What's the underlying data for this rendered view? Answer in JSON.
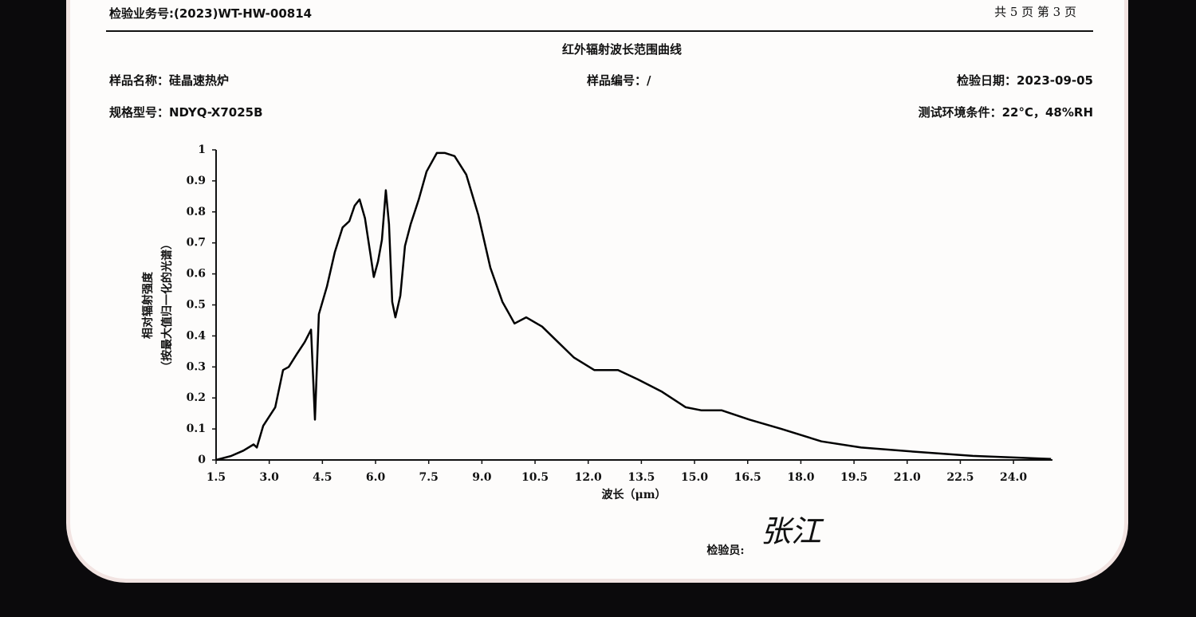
{
  "header": {
    "report_no": "检验业务号:(2023)WT-HW-00814",
    "page": "共 5 页 第 3 页"
  },
  "info": {
    "sample_name": "样品名称：硅晶速热炉",
    "sample_no": "样品编号：/",
    "test_date": "检验日期：2023-09-05",
    "model": "规格型号：NDYQ-X7025B",
    "environment": "测试环境条件：22°C，48%RH"
  },
  "chart_data": {
    "type": "line",
    "title": "红外辐射波长范围曲线",
    "x_label": "波长（μm）",
    "y_label": [
      "相对辐射强度",
      "（按最大值归一化的光谱）"
    ],
    "color": "#000000",
    "x": [
      1.5,
      1.93,
      2.27,
      2.56,
      2.65,
      2.83,
      3.17,
      3.39,
      3.55,
      3.77,
      4.0,
      4.18,
      4.29,
      4.4,
      4.63,
      4.85,
      5.07,
      5.26,
      5.41,
      5.55,
      5.7,
      5.86,
      5.95,
      6.07,
      6.18,
      6.29,
      6.38,
      6.47,
      6.56,
      6.7,
      6.83,
      6.99,
      7.22,
      7.44,
      7.73,
      7.96,
      8.23,
      8.56,
      8.9,
      9.24,
      9.58,
      9.92,
      10.25,
      10.7,
      11.15,
      11.6,
      12.17,
      12.84,
      13.4,
      14.08,
      14.75,
      15.2,
      15.77,
      16.55,
      17.45,
      18.58,
      19.7,
      21.28,
      22.85,
      24.0,
      25.06
    ],
    "values": [
      0,
      0.013,
      0.03,
      0.05,
      0.04,
      0.11,
      0.17,
      0.29,
      0.3,
      0.34,
      0.38,
      0.42,
      0.13,
      0.47,
      0.56,
      0.67,
      0.75,
      0.77,
      0.82,
      0.84,
      0.78,
      0.66,
      0.59,
      0.64,
      0.71,
      0.87,
      0.76,
      0.51,
      0.46,
      0.53,
      0.69,
      0.76,
      0.84,
      0.93,
      0.99,
      0.99,
      0.98,
      0.92,
      0.79,
      0.62,
      0.51,
      0.44,
      0.46,
      0.43,
      0.38,
      0.33,
      0.29,
      0.29,
      0.26,
      0.22,
      0.17,
      0.16,
      0.16,
      0.13,
      0.1,
      0.06,
      0.04,
      0.026,
      0.013,
      0.008,
      0.003
    ],
    "xlim": [
      1.5,
      25.1
    ],
    "ylim": [
      0,
      1
    ],
    "xticks": [
      1.5,
      {
        "value": 3,
        "label": "3.0"
      },
      4.5,
      {
        "value": 6,
        "label": "6.0"
      },
      7.5,
      {
        "value": 9,
        "label": "9.0"
      },
      10.5,
      {
        "value": 12,
        "label": "12.0"
      },
      13.5,
      {
        "value": 15,
        "label": "15.0"
      },
      16.5,
      {
        "value": 18,
        "label": "18.0"
      },
      19.5,
      {
        "value": 21,
        "label": "21.0"
      },
      22.5,
      {
        "value": 24,
        "label": "24.0"
      }
    ],
    "yticks": [
      0,
      0.1,
      0.2,
      0.3,
      0.4,
      0.5,
      0.6,
      0.7,
      0.8,
      0.9,
      1
    ]
  },
  "footer": {
    "inspector": "检验员:",
    "signature": "张江"
  }
}
